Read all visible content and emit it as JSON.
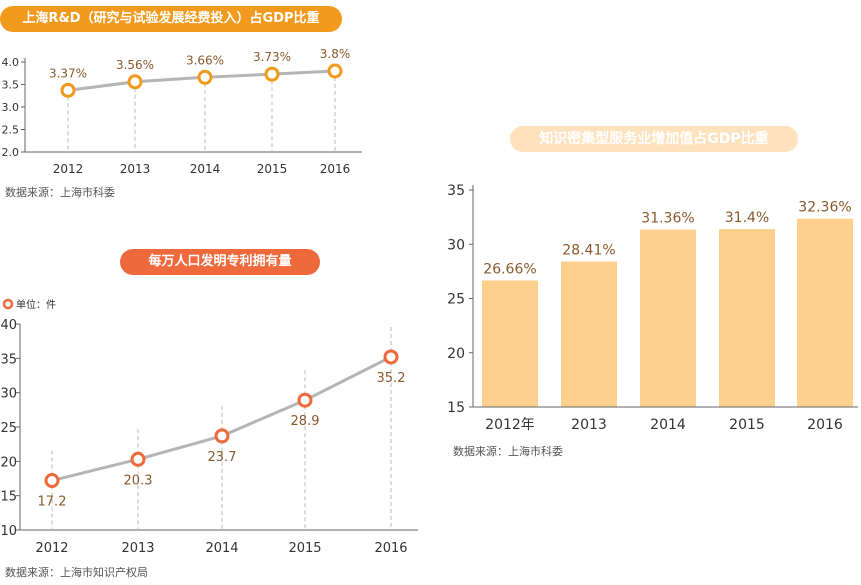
{
  "chart_data": [
    {
      "type": "line",
      "title": "上海R&D（研究与试验发展经费投入）占GDP比重",
      "source": "数据来源：上海市科委",
      "categories": [
        "2012",
        "2013",
        "2014",
        "2015",
        "2016"
      ],
      "values": [
        3.37,
        3.56,
        3.66,
        3.73,
        3.8
      ],
      "value_labels": [
        "3.37%",
        "3.56%",
        "3.66%",
        "3.73%",
        "3.8%"
      ],
      "yticks": [
        "2.0",
        "2.5",
        "3.0",
        "3.5",
        "4.0"
      ],
      "ylim": [
        2.0,
        4.0
      ],
      "grid": false,
      "colors": {
        "line": "#b5b5b5",
        "marker": "#f29a1e",
        "label": "#8a5a2b"
      }
    },
    {
      "type": "line",
      "title": "每万人口发明专利拥有量",
      "unit": "单位：件",
      "source": "数据来源：上海市知识产权局",
      "categories": [
        "2012",
        "2013",
        "2014",
        "2015",
        "2016"
      ],
      "values": [
        17.2,
        20.3,
        23.7,
        28.9,
        35.2
      ],
      "value_labels": [
        "17.2",
        "20.3",
        "23.7",
        "28.9",
        "35.2"
      ],
      "yticks": [
        "10",
        "15",
        "20",
        "25",
        "30",
        "35",
        "40"
      ],
      "ylim": [
        10,
        40
      ],
      "grid": false,
      "colors": {
        "line": "#b5b5b5",
        "marker": "#ee6a3c",
        "label": "#8a5a2b"
      }
    },
    {
      "type": "bar",
      "title": "知识密集型服务业增加值占GDP比重",
      "source": "数据来源：上海市科委",
      "categories": [
        "2012年",
        "2013",
        "2014",
        "2015",
        "2016"
      ],
      "values": [
        26.66,
        28.41,
        31.36,
        31.4,
        32.36
      ],
      "value_labels": [
        "26.66%",
        "28.41%",
        "31.36%",
        "31.4%",
        "32.36%"
      ],
      "yticks": [
        "15",
        "20",
        "25",
        "30",
        "35"
      ],
      "ylim": [
        15,
        35
      ],
      "grid": false,
      "colors": {
        "bar": "#fdd08e",
        "label": "#8a5a2b"
      }
    }
  ]
}
